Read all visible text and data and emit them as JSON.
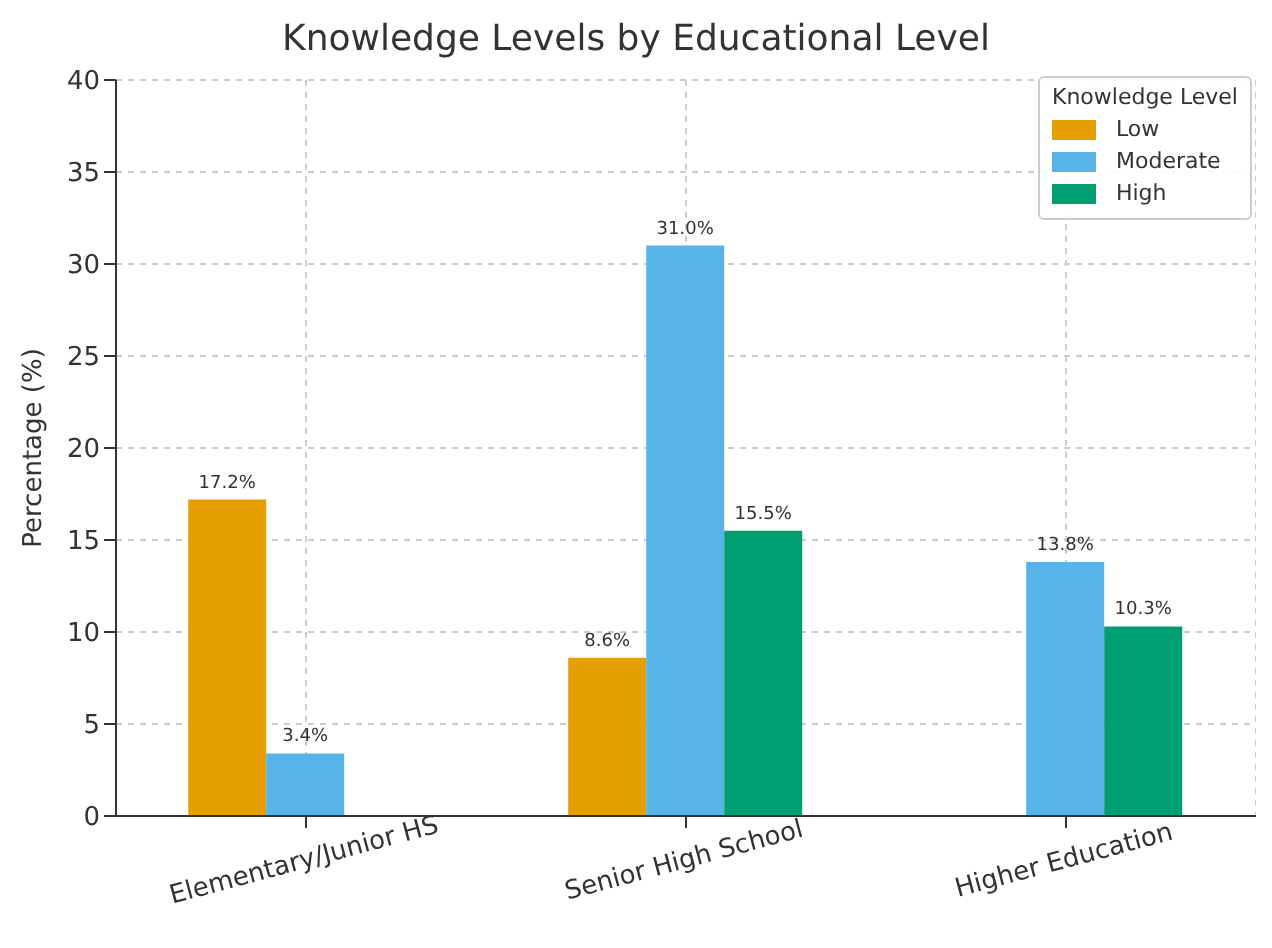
{
  "chart_data": {
    "type": "bar",
    "title": "Knowledge Levels by Educational Level",
    "xlabel": null,
    "ylabel": "Percentage (%)",
    "legend_title": "Knowledge Level",
    "categories": [
      "Elementary/Junior HS",
      "Senior High School",
      "Higher Education"
    ],
    "series": [
      {
        "name": "Low",
        "color": "#e69f00",
        "values": [
          17.2,
          8.6,
          null
        ],
        "value_labels": [
          "17.2%",
          "8.6%",
          null
        ]
      },
      {
        "name": "Moderate",
        "color": "#56b4e9",
        "values": [
          3.4,
          31.0,
          13.8
        ],
        "value_labels": [
          "3.4%",
          "31.0%",
          "13.8%"
        ]
      },
      {
        "name": "High",
        "color": "#009e73",
        "values": [
          null,
          15.5,
          10.3
        ],
        "value_labels": [
          null,
          "15.5%",
          "10.3%"
        ]
      }
    ],
    "ylim": [
      0,
      40
    ],
    "yticks": [
      0,
      5,
      10,
      15,
      20,
      25,
      30,
      35,
      40
    ],
    "grid": true,
    "legend": "top right"
  }
}
